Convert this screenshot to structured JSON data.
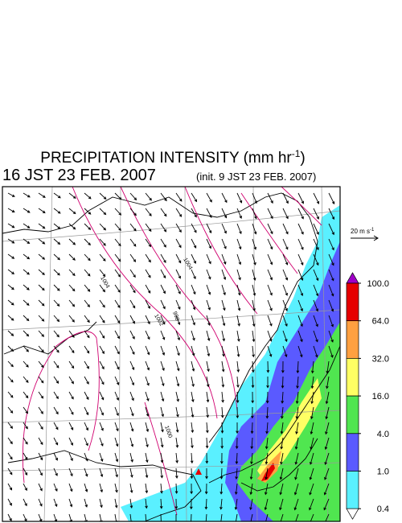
{
  "header": {
    "title": {
      "main": "PRECIPITATION INTENSITY (mm hr",
      "sup": "-1",
      "end": ")"
    },
    "valid_time": "16 JST 23 FEB. 2007",
    "init_time": "(init. 9 JST 23 FEB. 2007)"
  },
  "wind_reference": {
    "main": "20 m s",
    "sup": "-1"
  },
  "isobar_labels": [
    "1004",
    "1002",
    "998",
    "1000",
    "1004"
  ],
  "colorbar": {
    "ticks": [
      {
        "value": 100,
        "label": "100.0"
      },
      {
        "value": 64,
        "label": "64.0"
      },
      {
        "value": 32,
        "label": "32.0"
      },
      {
        "value": 16,
        "label": "16.0"
      },
      {
        "value": 4,
        "label": "4.0"
      },
      {
        "value": 1,
        "label": "1.0"
      },
      {
        "value": 0.4,
        "label": "0.4"
      }
    ],
    "colors": [
      "#a000c8",
      "#e60000",
      "#ffa040",
      "#ffff64",
      "#50e650",
      "#5a5aff",
      "#5af0ff",
      "#ffffff"
    ]
  }
}
